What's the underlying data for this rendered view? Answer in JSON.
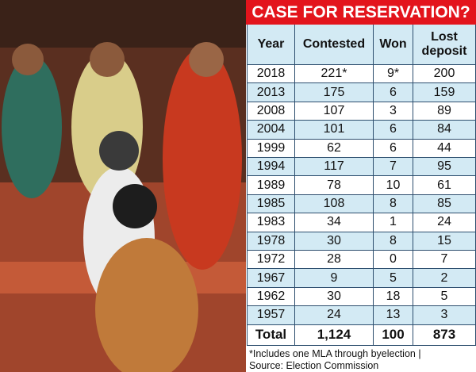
{
  "header": {
    "title": "CASE FOR RESERVATION?"
  },
  "table": {
    "columns": [
      "Year",
      "Contested",
      "Won",
      "Lost deposit"
    ],
    "rows": [
      [
        "2018",
        "221*",
        "9*",
        "200"
      ],
      [
        "2013",
        "175",
        "6",
        "159"
      ],
      [
        "2008",
        "107",
        "3",
        "89"
      ],
      [
        "2004",
        "101",
        "6",
        "84"
      ],
      [
        "1999",
        "62",
        "6",
        "44"
      ],
      [
        "1994",
        "117",
        "7",
        "95"
      ],
      [
        "1989",
        "78",
        "10",
        "61"
      ],
      [
        "1985",
        "108",
        "8",
        "85"
      ],
      [
        "1983",
        "34",
        "1",
        "24"
      ],
      [
        "1978",
        "30",
        "8",
        "15"
      ],
      [
        "1972",
        "28",
        "0",
        "7"
      ],
      [
        "1967",
        "9",
        "5",
        "2"
      ],
      [
        "1962",
        "30",
        "18",
        "5"
      ],
      [
        "1957",
        "24",
        "13",
        "3"
      ]
    ],
    "total": [
      "Total",
      "1,124",
      "100",
      "873"
    ]
  },
  "footnote": [
    "*Includes one MLA through byelection |",
    "Source: Election Commission"
  ]
}
